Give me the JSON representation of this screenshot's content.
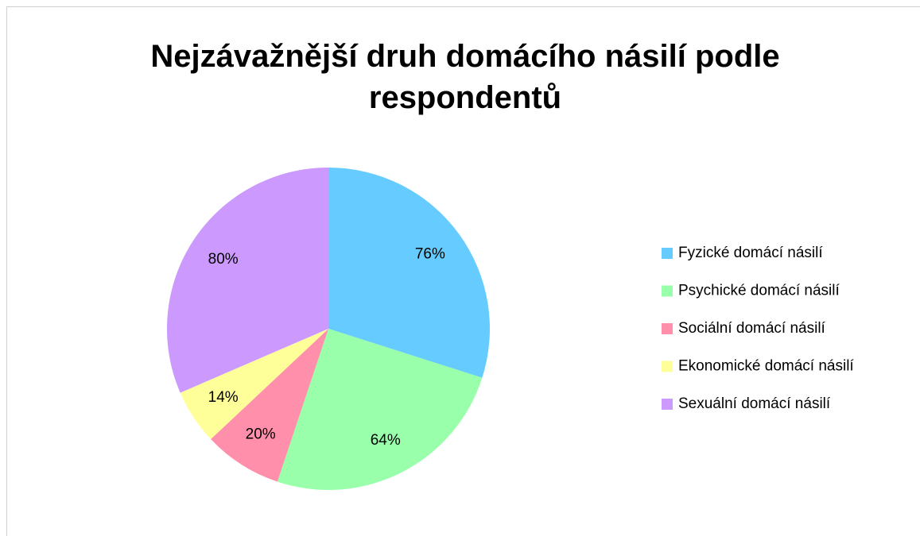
{
  "chart_data": {
    "type": "pie",
    "title": "Nejzávažnější druh domácího násilí podle respondentů",
    "categories": [
      "Fyzické domácí násilí",
      "Psychické domácí násilí",
      "Sociální domácí násilí",
      "Ekonomické domácí násilí",
      "Sexuální domácí násilí"
    ],
    "values": [
      76,
      64,
      20,
      14,
      80
    ],
    "value_labels": [
      "76%",
      "64%",
      "20%",
      "14%",
      "80%"
    ],
    "colors": [
      "#66ccff",
      "#99ffaa",
      "#ff8fab",
      "#ffff99",
      "#cc99ff"
    ],
    "legend": "right"
  }
}
